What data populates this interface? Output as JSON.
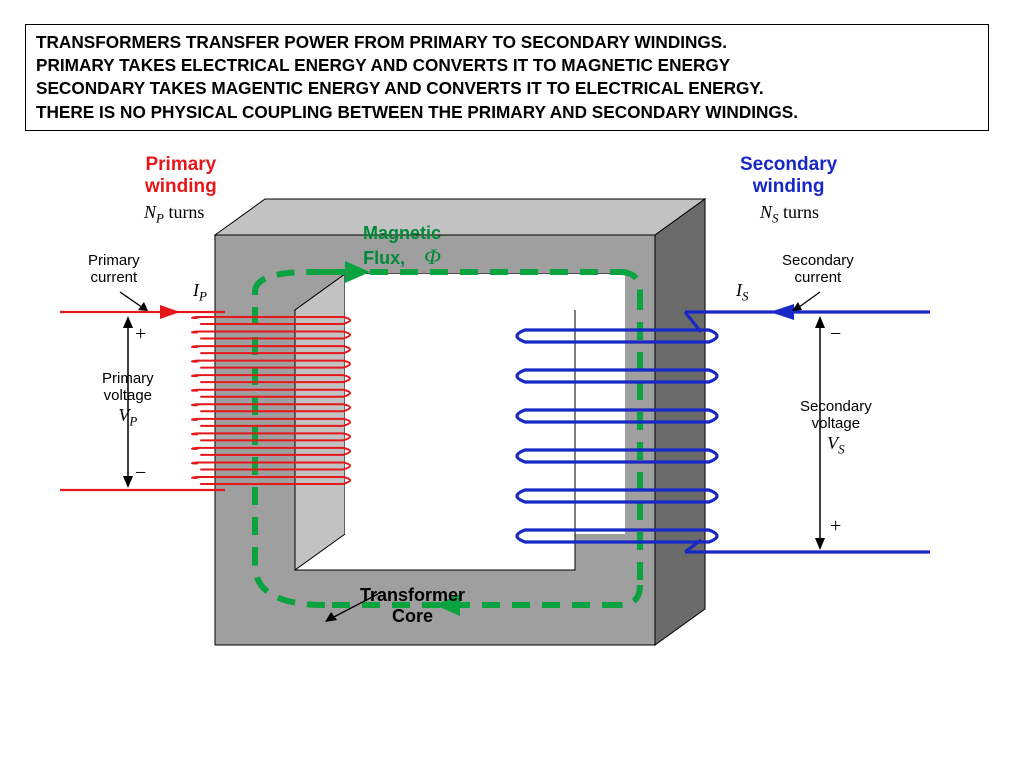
{
  "header": {
    "lines": [
      "TRANSFORMERS TRANSFER POWER FROM PRIMARY TO SECONDARY WINDINGS.",
      "PRIMARY TAKES ELECTRICAL ENERGY AND CONVERTS IT TO MAGNETIC ENERGY",
      "SECONDARY TAKES MAGENTIC ENERGY AND CONVERTS IT TO ELECTRICAL ENERGY.",
      "THERE IS NO PHYSICAL COUPLING BETWEEN THE PRIMARY AND SECONDARY WINDINGS."
    ]
  },
  "diagram": {
    "colors": {
      "primary": "#e4171a",
      "secondary": "#1728c6",
      "flux": "#0aa33f",
      "core_face": "#9f9f9f",
      "core_shade_dark": "#6b6b6b",
      "core_shade_mid": "#8a8a8a",
      "core_shade_light": "#c2c2c2",
      "text": "#000000",
      "flux_text": "#008a37"
    },
    "labels": {
      "primary_winding_1": "Primary",
      "primary_winding_2": "winding",
      "primary_turns_base": "N",
      "primary_turns_sub": "P",
      "primary_turns_suffix": " turns",
      "primary_current_1": "Primary",
      "primary_current_2": "current",
      "ip_base": "I",
      "ip_sub": "P",
      "plus": "+",
      "minus": "−",
      "primary_voltage_1": "Primary",
      "primary_voltage_2": "voltage",
      "vp_base": "V",
      "vp_sub": "P",
      "magflux_1": "Magnetic",
      "magflux_2": "Flux,",
      "phi": "Φ",
      "core_lbl": "Transformer",
      "core_lbl2": "Core",
      "secondary_winding_1": "Secondary",
      "secondary_winding_2": "winding",
      "secondary_turns_base": "N",
      "secondary_turns_sub": "S",
      "secondary_turns_suffix": " turns",
      "secondary_current_1": "Secondary",
      "secondary_current_2": "current",
      "is_base": "I",
      "is_sub": "S",
      "secondary_voltage_1": "Secondary",
      "secondary_voltage_2": "voltage",
      "vs_base": "V",
      "vs_sub": "S"
    },
    "primary_coil": {
      "count": 12,
      "stroke_width": 2
    },
    "secondary_coil": {
      "count": 6,
      "stroke_width": 3.2
    },
    "flux_dash": "18 12",
    "flux_stroke": 6
  }
}
